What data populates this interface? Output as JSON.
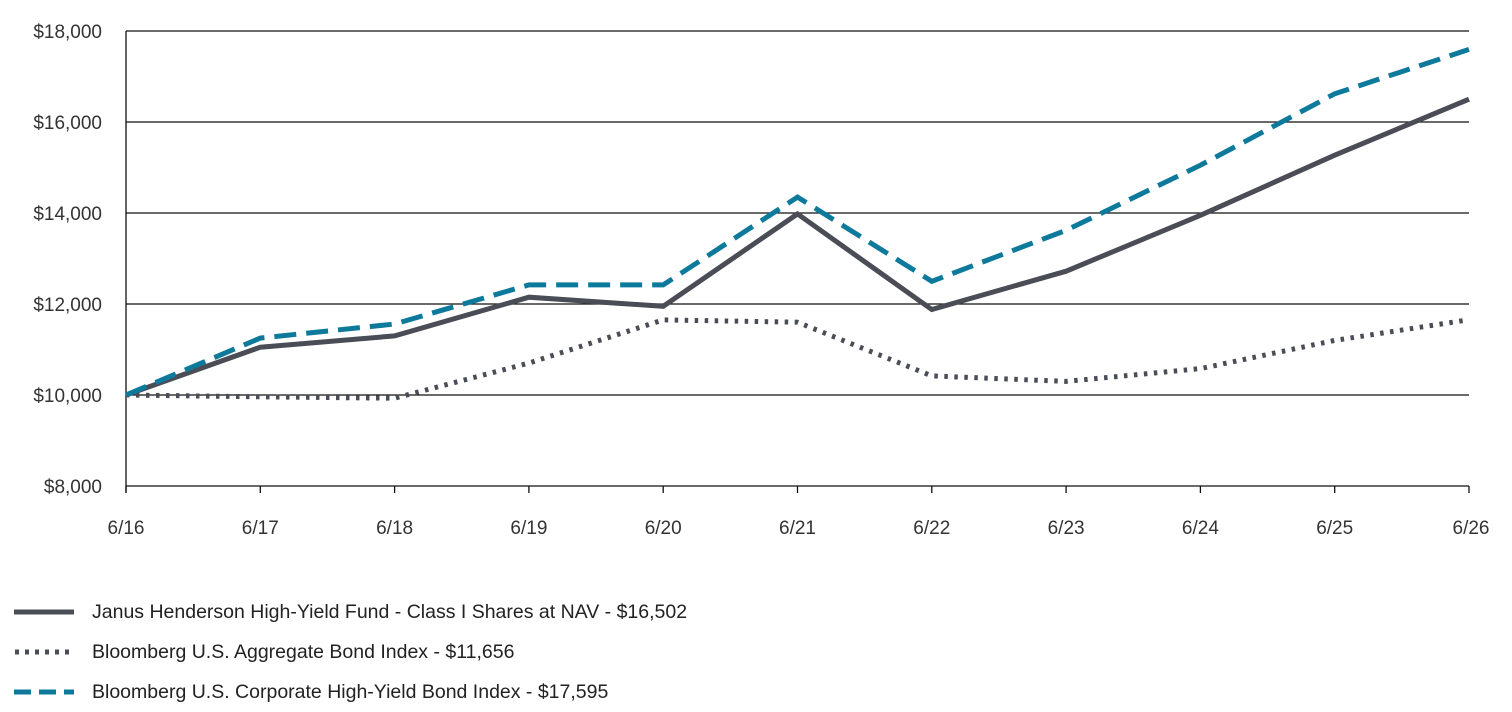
{
  "chart_data": {
    "type": "line",
    "categories": [
      "6/16",
      "6/17",
      "6/18",
      "6/19",
      "6/20",
      "6/21",
      "6/22",
      "6/23",
      "6/24",
      "6/25",
      "6/26"
    ],
    "ylim": [
      8000,
      18000
    ],
    "yticks": [
      8000,
      10000,
      12000,
      14000,
      16000,
      18000
    ],
    "ytick_labels": [
      "$8,000",
      "$10,000",
      "$12,000",
      "$14,000",
      "$16,000",
      "$18,000"
    ],
    "grid": true,
    "legend_position": "bottom-left",
    "series": [
      {
        "name": "Janus Henderson High-Yield Fund - Class I Shares at NAV - $16,502",
        "style": "solid",
        "color": "#4a4c56",
        "values": [
          10000,
          11050,
          11300,
          12150,
          11950,
          13980,
          11880,
          12720,
          13950,
          15270,
          16502
        ]
      },
      {
        "name": "Bloomberg U.S. Aggregate Bond Index - $11,656",
        "style": "dotted",
        "color": "#4a4c56",
        "values": [
          10000,
          9960,
          9930,
          10700,
          11650,
          11600,
          10420,
          10300,
          10580,
          11200,
          11656
        ]
      },
      {
        "name": "Bloomberg U.S. Corporate High-Yield Bond Index - $17,595",
        "style": "dashed",
        "color": "#0d7a9c",
        "values": [
          10000,
          11250,
          11560,
          12420,
          12420,
          14350,
          12500,
          13620,
          15050,
          16620,
          17595
        ]
      }
    ]
  }
}
